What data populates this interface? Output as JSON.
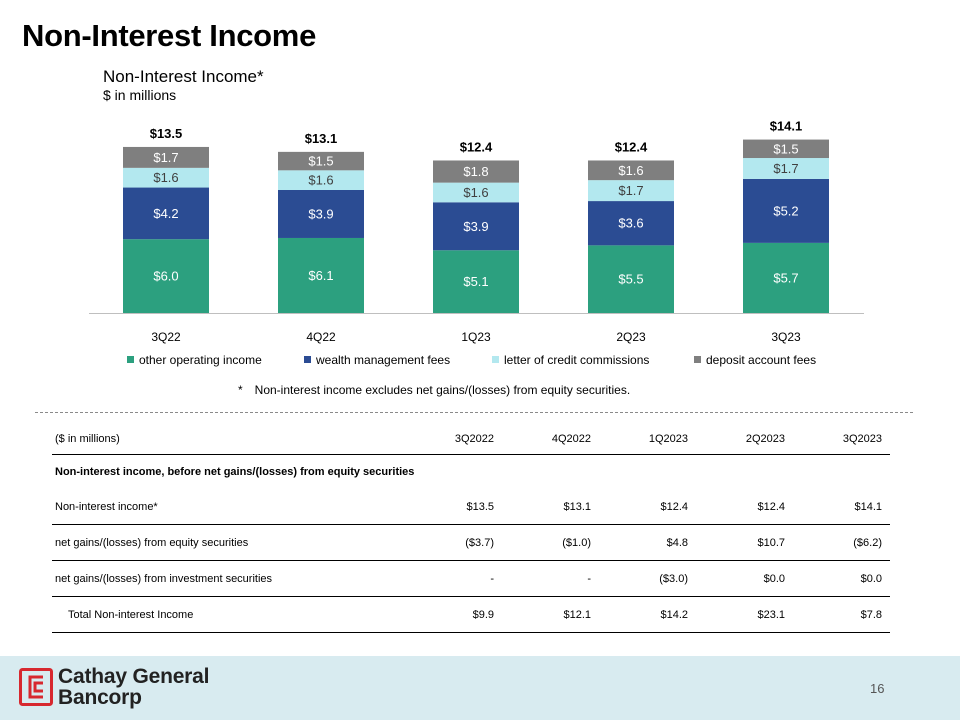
{
  "page": {
    "title": "Non-Interest Income",
    "page_number": "16"
  },
  "chart_data": {
    "type": "bar",
    "stacked": true,
    "title": "Non-Interest Income*",
    "subtitle": "$ in millions",
    "categories": [
      "3Q22",
      "4Q22",
      "1Q23",
      "2Q23",
      "3Q23"
    ],
    "series": [
      {
        "name": "other operating income",
        "color": "#2ca07f",
        "values": [
          6.0,
          6.1,
          5.1,
          5.5,
          5.7
        ],
        "labels": [
          "$6.0",
          "$6.1",
          "$5.1",
          "$5.5",
          "$5.7"
        ]
      },
      {
        "name": "wealth management fees",
        "color": "#2b4c93",
        "values": [
          4.2,
          3.9,
          3.9,
          3.6,
          5.2
        ],
        "labels": [
          "$4.2",
          "$3.9",
          "$3.9",
          "$3.6",
          "$5.2"
        ]
      },
      {
        "name": "letter of credit commissions",
        "color": "#b3e8ef",
        "values": [
          1.6,
          1.6,
          1.6,
          1.7,
          1.7
        ],
        "labels": [
          "$1.6",
          "$1.6",
          "$1.6",
          "$1.7",
          "$1.7"
        ]
      },
      {
        "name": "deposit account fees",
        "color": "#7f7f7f",
        "values": [
          1.7,
          1.5,
          1.8,
          1.6,
          1.5
        ],
        "labels": [
          "$1.7",
          "$1.5",
          "$1.8",
          "$1.6",
          "$1.5"
        ]
      }
    ],
    "totals": [
      "$13.5",
      "$13.1",
      "$12.4",
      "$12.4",
      "$14.1"
    ],
    "ylim": [
      0,
      15
    ],
    "grid": false,
    "legend_position": "bottom"
  },
  "footnote": {
    "marker": "*",
    "text": "Non-interest income excludes net gains/(losses) from equity securities."
  },
  "table": {
    "header_label": "($ in millions)",
    "columns": [
      "3Q2022",
      "4Q2022",
      "1Q2023",
      "2Q2023",
      "3Q2023"
    ],
    "section_label": "Non-interest income, before net gains/(losses) from equity securities",
    "rows": [
      {
        "label": "Non-interest income*",
        "values": [
          "$13.5",
          "$13.1",
          "$12.4",
          "$12.4",
          "$14.1"
        ]
      },
      {
        "label": "net gains/(losses) from equity securities",
        "values": [
          "($3.7)",
          "($1.0)",
          "$4.8",
          "$10.7",
          "($6.2)"
        ]
      },
      {
        "label": "net gains/(losses) from investment securities",
        "values": [
          "-",
          "-",
          "($3.0)",
          "$0.0",
          "$0.0"
        ]
      },
      {
        "label": "Total Non-interest Income",
        "values": [
          "$9.9",
          "$12.1",
          "$14.2",
          "$23.1",
          "$7.8"
        ]
      }
    ]
  },
  "footer": {
    "brand_line1": "Cathay General",
    "brand_line2": "Bancorp",
    "logo_icon": "cathay-logo-icon",
    "logo_color": "#d7282f"
  }
}
